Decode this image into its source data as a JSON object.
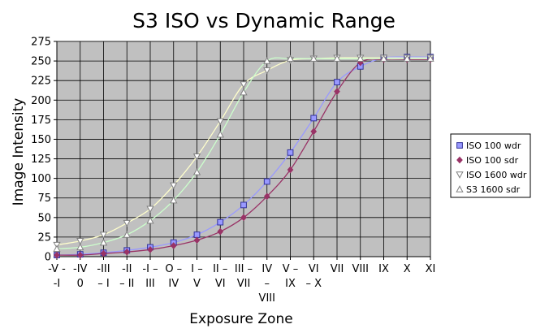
{
  "chart_data": {
    "type": "line",
    "title": "S3 ISO vs Dynamic Range",
    "xlabel": "Exposure Zone",
    "ylabel": "Image Intensity",
    "ylim": [
      0,
      275
    ],
    "yticks": [
      0,
      25,
      50,
      75,
      100,
      125,
      150,
      175,
      200,
      225,
      250,
      275
    ],
    "grid": true,
    "legend_position": "right",
    "categories": [
      {
        "line1": "-V -",
        "line2": "-I",
        "line3": ""
      },
      {
        "line1": "-IV",
        "line2": "0",
        "line3": ""
      },
      {
        "line1": "-III",
        "line2": "– I",
        "line3": ""
      },
      {
        "line1": "-II",
        "line2": "– II",
        "line3": ""
      },
      {
        "line1": "-I –",
        "line2": "III",
        "line3": ""
      },
      {
        "line1": "O –",
        "line2": "IV",
        "line3": ""
      },
      {
        "line1": "I –",
        "line2": "V",
        "line3": ""
      },
      {
        "line1": "II –",
        "line2": "VI",
        "line3": ""
      },
      {
        "line1": "III –",
        "line2": "VII",
        "line3": ""
      },
      {
        "line1": "IV",
        "line2": "–",
        "line3": "VIII"
      },
      {
        "line1": "V –",
        "line2": "IX",
        "line3": ""
      },
      {
        "line1": "VI",
        "line2": "– X",
        "line3": ""
      },
      {
        "line1": "VII",
        "line2": "",
        "line3": ""
      },
      {
        "line1": "VIII",
        "line2": "",
        "line3": ""
      },
      {
        "line1": "IX",
        "line2": "",
        "line3": ""
      },
      {
        "line1": "X",
        "line2": "",
        "line3": ""
      },
      {
        "line1": "XI",
        "line2": "",
        "line3": ""
      }
    ],
    "series": [
      {
        "name": "ISO 100 wdr",
        "color": "#9999ff",
        "marker": "square",
        "marker_fill": "#9999ff",
        "marker_stroke": "#333399",
        "values": [
          2,
          3,
          5,
          8,
          12,
          18,
          28,
          44,
          66,
          96,
          133,
          177,
          223,
          243,
          254,
          255,
          255
        ]
      },
      {
        "name": "ISO 100 sdr",
        "color": "#993366",
        "marker": "diamond",
        "marker_fill": "#993366",
        "marker_stroke": "#993366",
        "values": [
          2,
          2,
          4,
          6,
          9,
          14,
          21,
          32,
          50,
          77,
          111,
          160,
          211,
          248,
          252,
          252,
          252
        ]
      },
      {
        "name": "ISO 1600 wdr",
        "color": "#ffffcc",
        "marker": "triangle-down",
        "marker_fill": "#ffffff",
        "marker_stroke": "#808080",
        "values": [
          15,
          20,
          28,
          43,
          61,
          91,
          128,
          173,
          220,
          238,
          251,
          253,
          254,
          254,
          254,
          254,
          254
        ]
      },
      {
        "name": "S3 1600 sdr",
        "color": "#ccffcc",
        "marker": "triangle-up",
        "marker_fill": "#ffffff",
        "marker_stroke": "#808080",
        "values": [
          10,
          12,
          18,
          28,
          46,
          72,
          108,
          156,
          210,
          250,
          253,
          253,
          253,
          253,
          253,
          253,
          253
        ]
      }
    ]
  }
}
